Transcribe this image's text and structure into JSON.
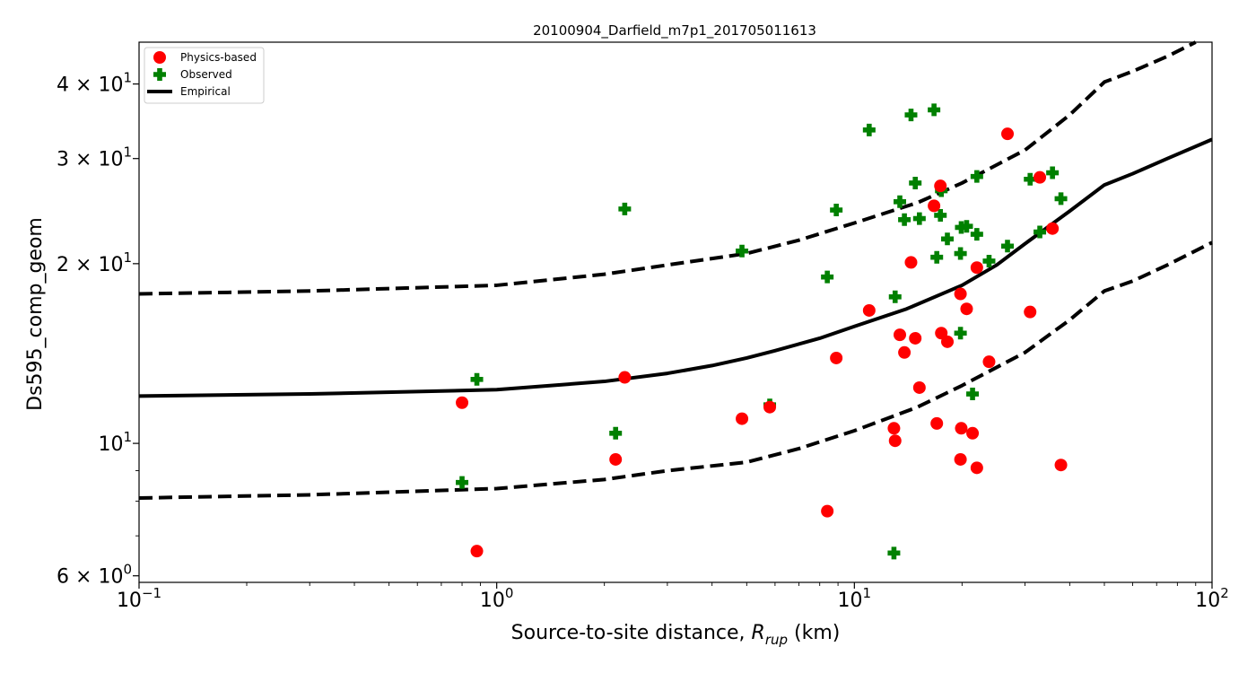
{
  "chart_data": {
    "type": "scatter",
    "title": "20100904_Darfield_m7p1_201705011613",
    "xlabel_main": "Source-to-site distance, ",
    "xlabel_var": "R",
    "xlabel_sub": "rup",
    "xlabel_unit": " (km)",
    "ylabel": "Ds595_comp_geom",
    "x_scale": "log",
    "y_scale": "log",
    "xlim": [
      0.1,
      100
    ],
    "ylim": [
      5.85,
      47
    ],
    "grid": false,
    "legend_position": "top-left",
    "x_ticks": [
      {
        "value": 0.1,
        "base": "10",
        "exp": "−1"
      },
      {
        "value": 1,
        "base": "10",
        "exp": "0"
      },
      {
        "value": 10,
        "base": "10",
        "exp": "1"
      },
      {
        "value": 100,
        "base": "10",
        "exp": "2"
      }
    ],
    "y_ticks": [
      {
        "value": 6,
        "mant": "6 × 10",
        "exp": "0"
      },
      {
        "value": 10,
        "mant": "10",
        "exp": "1"
      },
      {
        "value": 20,
        "mant": "2 × 10",
        "exp": "1"
      },
      {
        "value": 30,
        "mant": "3 × 10",
        "exp": "1"
      },
      {
        "value": 40,
        "mant": "4 × 10",
        "exp": "1"
      }
    ],
    "series": [
      {
        "name": "Physics-based",
        "kind": "scatter",
        "marker": "circle",
        "color": "#ff0000",
        "points": [
          [
            0.8,
            11.7
          ],
          [
            0.88,
            6.6
          ],
          [
            2.15,
            9.4
          ],
          [
            2.28,
            12.9
          ],
          [
            4.85,
            11.0
          ],
          [
            5.8,
            11.5
          ],
          [
            8.4,
            7.7
          ],
          [
            8.9,
            13.9
          ],
          [
            11.0,
            16.7
          ],
          [
            12.9,
            10.6
          ],
          [
            13.0,
            10.1
          ],
          [
            13.4,
            15.2
          ],
          [
            13.8,
            14.2
          ],
          [
            14.4,
            20.1
          ],
          [
            14.8,
            15.0
          ],
          [
            15.2,
            12.4
          ],
          [
            16.7,
            25.0
          ],
          [
            17.0,
            10.8
          ],
          [
            17.4,
            27.0
          ],
          [
            17.5,
            15.3
          ],
          [
            18.2,
            14.8
          ],
          [
            19.8,
            17.8
          ],
          [
            19.9,
            10.6
          ],
          [
            19.8,
            9.4
          ],
          [
            20.6,
            16.8
          ],
          [
            21.4,
            10.4
          ],
          [
            22.0,
            19.7
          ],
          [
            22.0,
            9.1
          ],
          [
            23.8,
            13.7
          ],
          [
            26.8,
            33.0
          ],
          [
            31.0,
            16.6
          ],
          [
            33.0,
            27.9
          ],
          [
            35.8,
            22.9
          ],
          [
            37.8,
            9.2
          ]
        ]
      },
      {
        "name": "Observed",
        "kind": "scatter",
        "marker": "plus",
        "color": "#008000",
        "points": [
          [
            0.8,
            8.6
          ],
          [
            0.88,
            12.8
          ],
          [
            2.15,
            10.4
          ],
          [
            2.28,
            24.7
          ],
          [
            4.85,
            21.0
          ],
          [
            5.8,
            11.6
          ],
          [
            8.4,
            19.0
          ],
          [
            8.9,
            24.6
          ],
          [
            11.0,
            33.5
          ],
          [
            12.9,
            6.55
          ],
          [
            13.0,
            17.6
          ],
          [
            13.4,
            25.4
          ],
          [
            13.8,
            23.7
          ],
          [
            14.4,
            35.5
          ],
          [
            14.8,
            27.3
          ],
          [
            15.2,
            23.8
          ],
          [
            16.7,
            36.2
          ],
          [
            17.0,
            20.5
          ],
          [
            17.4,
            24.1
          ],
          [
            17.5,
            26.5
          ],
          [
            18.2,
            22.0
          ],
          [
            19.8,
            20.8
          ],
          [
            19.9,
            23.0
          ],
          [
            19.8,
            15.3
          ],
          [
            20.6,
            23.1
          ],
          [
            21.4,
            12.1
          ],
          [
            22.0,
            28.0
          ],
          [
            22.0,
            22.4
          ],
          [
            23.8,
            20.2
          ],
          [
            26.8,
            21.4
          ],
          [
            31.0,
            27.7
          ],
          [
            33.0,
            22.6
          ],
          [
            35.8,
            28.4
          ],
          [
            37.8,
            25.7
          ]
        ]
      },
      {
        "name": "Empirical",
        "kind": "line",
        "color": "#000000",
        "points": [
          [
            0.1,
            12.0
          ],
          [
            0.3,
            12.1
          ],
          [
            1.0,
            12.3
          ],
          [
            2.0,
            12.7
          ],
          [
            3.0,
            13.1
          ],
          [
            4.0,
            13.5
          ],
          [
            5.0,
            13.9
          ],
          [
            6.0,
            14.3
          ],
          [
            8.0,
            15.0
          ],
          [
            10.0,
            15.7
          ],
          [
            14.0,
            16.8
          ],
          [
            20.0,
            18.4
          ],
          [
            25.0,
            19.9
          ],
          [
            30.0,
            21.6
          ],
          [
            40.0,
            24.5
          ],
          [
            50.0,
            27.1
          ],
          [
            60.0,
            28.3
          ],
          [
            75.0,
            30.0
          ],
          [
            100.0,
            32.3
          ]
        ]
      },
      {
        "name": "Empirical upper",
        "kind": "dashed-line",
        "color": "#000000",
        "points": [
          [
            0.1,
            17.8
          ],
          [
            0.3,
            18.0
          ],
          [
            1.0,
            18.4
          ],
          [
            2.0,
            19.2
          ],
          [
            3.0,
            19.9
          ],
          [
            5.0,
            20.8
          ],
          [
            7.0,
            21.9
          ],
          [
            10.0,
            23.4
          ],
          [
            15.0,
            25.3
          ],
          [
            20.0,
            27.3
          ],
          [
            30.0,
            31.0
          ],
          [
            40.0,
            35.5
          ],
          [
            50.0,
            40.3
          ],
          [
            60.0,
            42.0
          ],
          [
            75.0,
            44.5
          ],
          [
            90.0,
            47.0
          ]
        ]
      },
      {
        "name": "Empirical lower",
        "kind": "dashed-line",
        "color": "#000000",
        "points": [
          [
            0.1,
            8.1
          ],
          [
            0.3,
            8.2
          ],
          [
            1.0,
            8.4
          ],
          [
            2.0,
            8.7
          ],
          [
            3.0,
            9.0
          ],
          [
            5.0,
            9.3
          ],
          [
            7.0,
            9.8
          ],
          [
            10.0,
            10.5
          ],
          [
            15.0,
            11.5
          ],
          [
            20.0,
            12.5
          ],
          [
            30.0,
            14.2
          ],
          [
            40.0,
            16.1
          ],
          [
            50.0,
            18.0
          ],
          [
            60.0,
            18.7
          ],
          [
            75.0,
            19.9
          ],
          [
            100.0,
            21.7
          ]
        ]
      }
    ],
    "legend": [
      {
        "label": "Physics-based",
        "marker": "circle",
        "color": "#ff0000"
      },
      {
        "label": "Observed",
        "marker": "plus",
        "color": "#008000"
      },
      {
        "label": "Empirical",
        "marker": "line",
        "color": "#000000"
      }
    ]
  }
}
